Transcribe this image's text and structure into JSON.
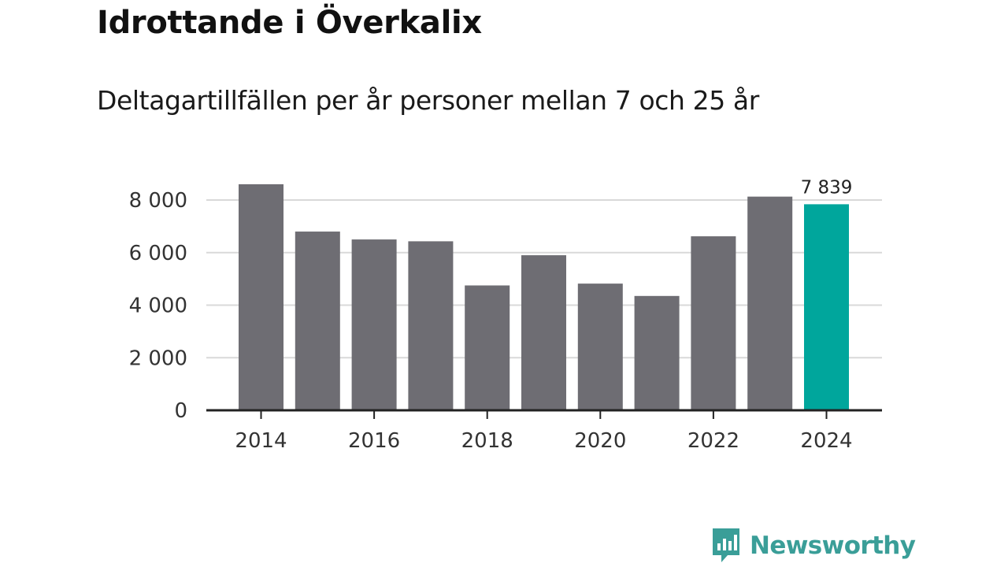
{
  "chart_data": {
    "type": "bar",
    "title": "Idrottande i Överkalix",
    "subtitle": "Deltagartillfällen per år personer mellan 7 och 25 år",
    "categories": [
      "2014",
      "2015",
      "2016",
      "2017",
      "2018",
      "2019",
      "2020",
      "2021",
      "2022",
      "2023",
      "2024"
    ],
    "values": [
      8600,
      6800,
      6500,
      6430,
      4750,
      5900,
      4820,
      4350,
      6620,
      8130,
      7839
    ],
    "x_tick_labels": [
      "2014",
      "2016",
      "2018",
      "2020",
      "2022",
      "2024"
    ],
    "y_ticks": [
      0,
      2000,
      4000,
      6000,
      8000
    ],
    "y_tick_labels": [
      "0",
      "2 000",
      "4 000",
      "6 000",
      "8 000"
    ],
    "ylim": [
      0,
      8600
    ],
    "highlight_index": 10,
    "highlight_label": "7 839",
    "xlabel": "",
    "ylabel": "",
    "colors": {
      "bar": "#6e6d73",
      "highlight": "#00a69c",
      "grid": "#d9d9d9",
      "axis": "#222222"
    }
  },
  "brand": {
    "name": "Newsworthy",
    "color": "#3a9e98"
  }
}
